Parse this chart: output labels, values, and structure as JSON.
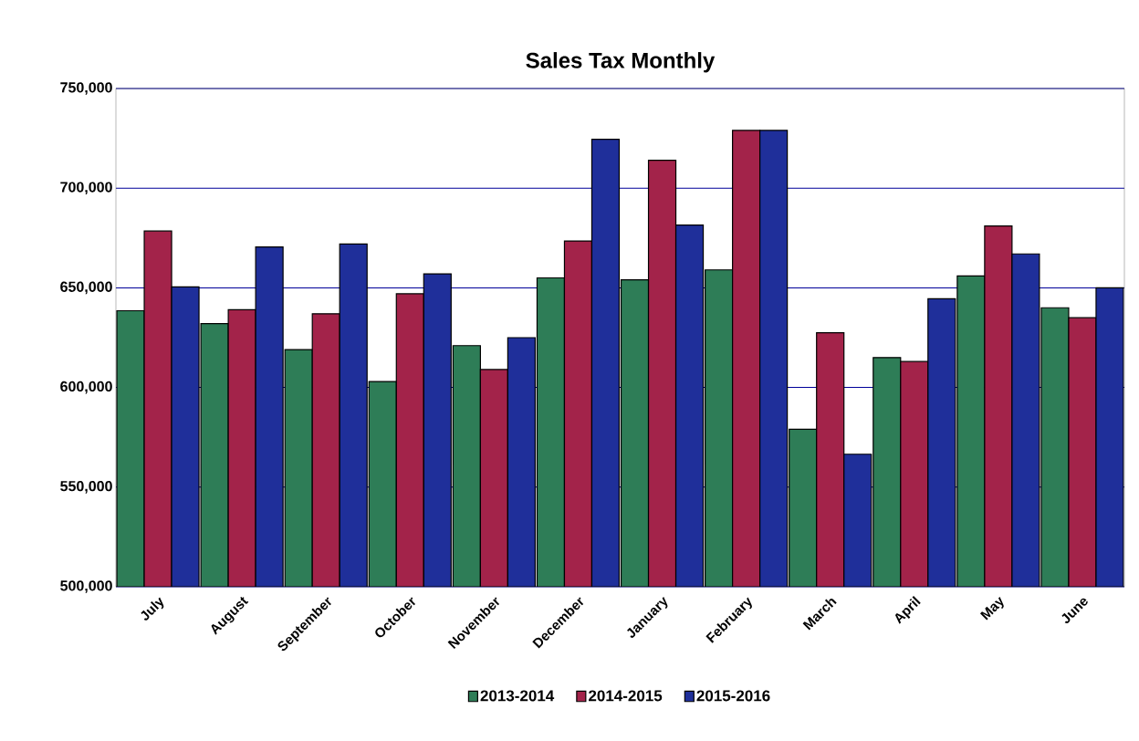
{
  "chart_data": {
    "type": "bar",
    "title": "Sales Tax Monthly",
    "categories": [
      "July",
      "August",
      "September",
      "October",
      "November",
      "December",
      "January",
      "February",
      "March",
      "April",
      "May",
      "June"
    ],
    "series": [
      {
        "name": "2013-2014",
        "color": "#2e7d57",
        "values": [
          638500,
          632000,
          619000,
          603000,
          621000,
          655000,
          654000,
          659000,
          579000,
          615000,
          656000,
          640000
        ]
      },
      {
        "name": "2014-2015",
        "color": "#a3234a",
        "values": [
          678500,
          639000,
          637000,
          647000,
          609000,
          673500,
          714000,
          729000,
          627500,
          613000,
          681000,
          635000
        ]
      },
      {
        "name": "2015-2016",
        "color": "#1f2f9a",
        "values": [
          650500,
          670500,
          672000,
          657000,
          625000,
          724500,
          681500,
          729000,
          566500,
          644500,
          667000,
          650000
        ]
      }
    ],
    "ylim": [
      500000,
      750000
    ],
    "yticks": [
      {
        "value": 500000,
        "label": "500,000"
      },
      {
        "value": 550000,
        "label": "550,000"
      },
      {
        "value": 600000,
        "label": "600,000"
      },
      {
        "value": 650000,
        "label": "650,000"
      },
      {
        "value": 700000,
        "label": "700,000"
      },
      {
        "value": 750000,
        "label": "750,000"
      }
    ],
    "grid": "y",
    "legend": "bottom"
  }
}
